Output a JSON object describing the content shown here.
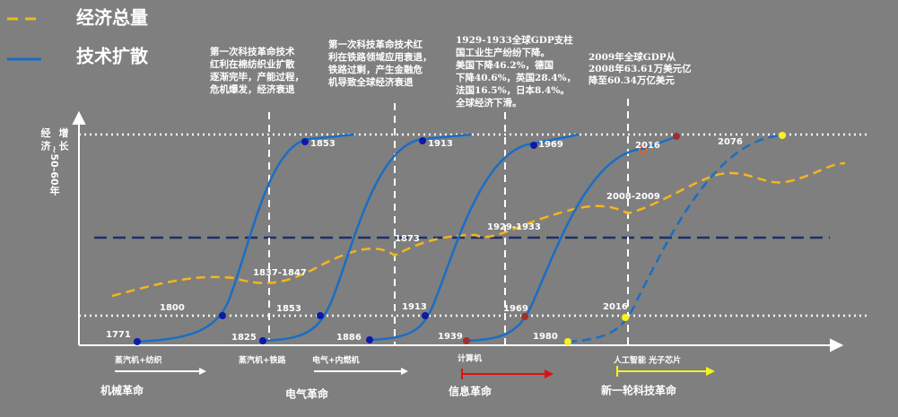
{
  "legend": [
    {
      "label": "经济总量"
    },
    {
      "label": "技术扩散"
    }
  ],
  "y_axis_label": [
    "经 济",
    "增 长",
    "~50-60年"
  ],
  "annotations": [
    {
      "lines": [
        "第一次科技革命技术",
        "红利在棉纺织业扩散",
        "逐渐完毕，产能过程，",
        "危机爆发，经济衰退"
      ]
    },
    {
      "lines": [
        "第一次科技革命技术红",
        "利在铁路领域应用衰退，",
        "铁路过剩，产生金融危",
        "机导致全球经济衰退"
      ]
    },
    {
      "lines": [
        "1929-1933全球GDP支柱",
        "国工业生产纷纷下降。",
        "美国下降46.2%，德国",
        "下降40.6%，英国28.4%，",
        "法国16.5%，日本8.4%。",
        "全球经济下滑。"
      ]
    },
    {
      "lines": [
        "2009年全球GDP从",
        "2008年63.61万美元亿",
        "降至60.34万亿美元"
      ]
    }
  ],
  "curve_labels": [
    "1853",
    "1913",
    "1969",
    "2016",
    "2076"
  ],
  "point_labels": [
    "1771",
    "1800",
    "1825",
    "1853",
    "1886",
    "1913",
    "1939",
    "1969",
    "1980",
    "2016"
  ],
  "crisis_labels": [
    "1837-1847",
    "1873",
    "1929-1933",
    "2008-2009"
  ],
  "technologies": [
    "蒸汽机+纺织",
    "蒸汽机+铁路",
    "电气+内燃机",
    "计算机",
    "人工智能 光子芯片"
  ],
  "revolutions": [
    "机械革命",
    "电气革命",
    "信息革命",
    "新一轮科技革命"
  ]
}
